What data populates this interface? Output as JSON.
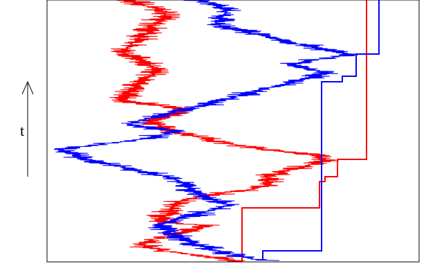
{
  "chart_data": {
    "type": "line",
    "axis_label": "t",
    "time_arrow": "up",
    "grid": false,
    "series": [
      {
        "color": "#ff0000",
        "walk_points": [
          [
            185,
            0
          ],
          [
            240,
            18
          ],
          [
            215,
            45
          ],
          [
            175,
            75
          ],
          [
            230,
            100
          ],
          [
            172,
            145
          ],
          [
            275,
            158
          ],
          [
            215,
            175
          ],
          [
            250,
            190
          ],
          [
            320,
            205
          ],
          [
            400,
            218
          ],
          [
            450,
            222
          ],
          [
            470,
            232
          ],
          [
            430,
            242
          ],
          [
            385,
            255
          ],
          [
            390,
            268
          ],
          [
            350,
            275
          ],
          [
            300,
            282
          ],
          [
            260,
            290
          ],
          [
            250,
            300
          ],
          [
            230,
            320
          ],
          [
            300,
            325
          ],
          [
            245,
            340
          ],
          [
            200,
            352
          ],
          [
            235,
            362
          ],
          [
            300,
            370
          ],
          [
            350,
            378
          ]
        ],
        "max_points": [
          [
            350,
            378
          ],
          [
            350,
            300
          ],
          [
            462,
            300
          ],
          [
            462,
            262
          ],
          [
            470,
            262
          ],
          [
            470,
            255
          ],
          [
            488,
            255
          ],
          [
            488,
            230
          ],
          [
            530,
            230
          ],
          [
            530,
            0
          ]
        ]
      },
      {
        "color": "#0000ff",
        "walk_points": [
          [
            290,
            0
          ],
          [
            330,
            15
          ],
          [
            310,
            35
          ],
          [
            395,
            55
          ],
          [
            470,
            72
          ],
          [
            510,
            78
          ],
          [
            420,
            92
          ],
          [
            470,
            105
          ],
          [
            420,
            120
          ],
          [
            370,
            132
          ],
          [
            300,
            150
          ],
          [
            185,
            178
          ],
          [
            250,
            190
          ],
          [
            210,
            200
          ],
          [
            90,
            215
          ],
          [
            130,
            232
          ],
          [
            175,
            240
          ],
          [
            240,
            255
          ],
          [
            260,
            262
          ],
          [
            285,
            280
          ],
          [
            330,
            295
          ],
          [
            285,
            310
          ],
          [
            230,
            322
          ],
          [
            250,
            338
          ],
          [
            270,
            348
          ],
          [
            300,
            358
          ],
          [
            355,
            372
          ],
          [
            380,
            376
          ]
        ],
        "max_points": [
          [
            380,
            376
          ],
          [
            380,
            362
          ],
          [
            465,
            362
          ],
          [
            465,
            118
          ],
          [
            495,
            118
          ],
          [
            495,
            110
          ],
          [
            515,
            110
          ],
          [
            515,
            78
          ],
          [
            548,
            78
          ],
          [
            548,
            0
          ]
        ]
      }
    ]
  }
}
